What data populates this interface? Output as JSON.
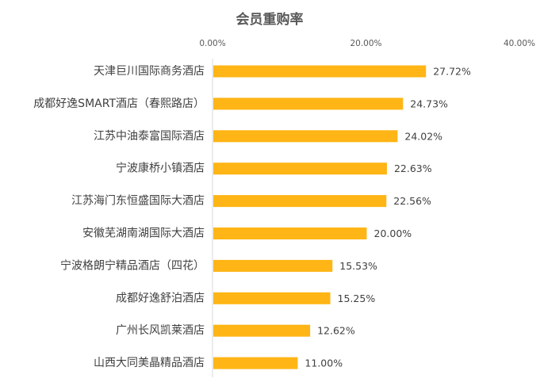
{
  "chart_data": {
    "type": "bar",
    "orientation": "horizontal",
    "title": "会员重购率",
    "categories": [
      "天津巨川国际商务酒店",
      "成都好逸SMART酒店（春熙路店）",
      "江苏中油泰富国际酒店",
      "宁波康桥小镇酒店",
      "江苏海门东恒盛国际大酒店",
      "安徽芜湖南湖国际大酒店",
      "宁波格朗宁精品酒店（四花）",
      "成都好逸舒泊酒店",
      "广州长风凯莱酒店",
      "山西大同美晶精品酒店"
    ],
    "values": [
      27.72,
      24.73,
      24.02,
      22.63,
      22.56,
      20.0,
      15.53,
      15.25,
      12.62,
      11.0
    ],
    "data_labels": [
      "27.72%",
      "24.73%",
      "24.02%",
      "22.63%",
      "22.56%",
      "20.00%",
      "15.53%",
      "15.25%",
      "12.62%",
      "11.00%"
    ],
    "x_ticks": [
      0,
      20,
      40
    ],
    "x_tick_labels": [
      "0.00%",
      "20.00%",
      "40.00%"
    ],
    "xlim": [
      0,
      40
    ],
    "x_axis_position": "top",
    "xlabel": "",
    "ylabel": "",
    "grid": false,
    "legend": "none",
    "bar_color": "#FFB515"
  }
}
